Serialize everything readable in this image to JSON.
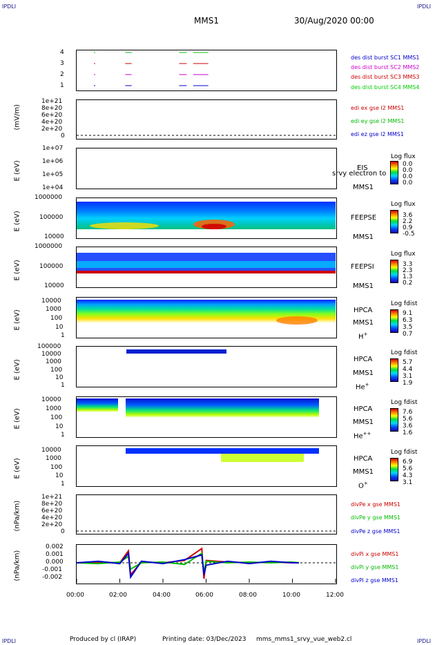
{
  "header": {
    "title": "MMS1",
    "date": "30/Aug/2020 00:00",
    "corner": "IPDLI"
  },
  "footer": {
    "produced": "Produced by cl (IRAP)",
    "printing": "Printing date: 03/Dec/2023",
    "script": "mms_mms1_srvy_vue_web2.cl"
  },
  "x_axis": {
    "ticks": [
      "00:00",
      "02:00",
      "04:00",
      "06:00",
      "08:00",
      "10:00",
      "12:00"
    ]
  },
  "panels": {
    "burst": {
      "yticks": [
        "4",
        "3",
        "2",
        "1"
      ],
      "legend": [
        {
          "text": "des dist burst SC1 MMS1",
          "color": "#0000cc"
        },
        {
          "text": "des dist burst SC2 MMS2",
          "color": "#cc00cc"
        },
        {
          "text": "des dist burst SC3 MMS3",
          "color": "#cc0000"
        },
        {
          "text": "des dist burst SC4 MMS4",
          "color": "#00cc00"
        }
      ]
    },
    "edi": {
      "ylabel": "(mV/m)",
      "yticks": [
        "1e+21",
        "8e+20",
        "6e+20",
        "4e+20",
        "2e+20",
        "0"
      ],
      "legend": [
        {
          "text": "edi ex gse l2 MMS1",
          "color": "#cc0000"
        },
        {
          "text": "edi ey gse l2 MMS1",
          "color": "#00bb00"
        },
        {
          "text": "edi ez gse l2 MMS1",
          "color": "#0000cc"
        }
      ]
    },
    "eis": {
      "ylabel": "E (eV)",
      "yticks": [
        "1e+07",
        "1e+06",
        "1e+05",
        "1e+04"
      ],
      "inst": "EIS",
      "inst2": "MMS1",
      "overlay": "srvy electron to",
      "cb_title": "Log flux",
      "cb_ticks": [
        "0.0",
        "0.0",
        "0.0",
        "0.0"
      ]
    },
    "feepse": {
      "ylabel": "E (eV)",
      "yticks": [
        "1000000",
        "100000",
        "10000"
      ],
      "inst": "FEEPSE",
      "inst2": "MMS1",
      "cb_title": "Log flux",
      "cb_ticks": [
        "3.6",
        "2.2",
        "0.9",
        "-0.5"
      ]
    },
    "feepsi": {
      "ylabel": "E (eV)",
      "yticks": [
        "1000000",
        "100000",
        "10000"
      ],
      "inst": "FEEPSI",
      "inst2": "MMS1",
      "cb_title": "Log flux",
      "cb_ticks": [
        "3.3",
        "2.3",
        "1.3",
        "0.2"
      ]
    },
    "hpca_h": {
      "ylabel": "E (eV)",
      "yticks": [
        "10000",
        "1000",
        "100",
        "10",
        "1"
      ],
      "inst": "HPCA",
      "inst2": "MMS1",
      "species": "H",
      "charge": "+",
      "cb_title": "Log fdist",
      "cb_ticks": [
        "9.1",
        "6.3",
        "3.5",
        "0.7"
      ]
    },
    "hpca_he": {
      "ylabel": "E (eV)",
      "yticks": [
        "100000",
        "10000",
        "1000",
        "100",
        "10",
        "1"
      ],
      "inst": "HPCA",
      "inst2": "MMS1",
      "species": "He",
      "charge": "+",
      "cb_title": "Log fdist",
      "cb_ticks": [
        "5.7",
        "4.4",
        "3.1",
        "1.9"
      ]
    },
    "hpca_hepp": {
      "ylabel": "E (eV)",
      "yticks": [
        "10000",
        "1000",
        "100",
        "10",
        "1"
      ],
      "inst": "HPCA",
      "inst2": "MMS1",
      "species": "He",
      "charge": "++",
      "cb_title": "Log fdist",
      "cb_ticks": [
        "7.6",
        "5.6",
        "3.6",
        "1.6"
      ]
    },
    "hpca_o": {
      "ylabel": "E (eV)",
      "yticks": [
        "10000",
        "1000",
        "100",
        "10",
        "1"
      ],
      "inst": "HPCA",
      "inst2": "MMS1",
      "species": "O",
      "charge": "+",
      "cb_title": "Log fdist",
      "cb_ticks": [
        "6.9",
        "5.6",
        "4.3",
        "3.1"
      ]
    },
    "divpe": {
      "ylabel": "(nPa/km)",
      "yticks": [
        "1e+21",
        "8e+20",
        "6e+20",
        "4e+20",
        "2e+20",
        "0"
      ],
      "legend": [
        {
          "text": "divPe x gse MMS1",
          "color": "#cc0000"
        },
        {
          "text": "divPe y gse MMS1",
          "color": "#00bb00"
        },
        {
          "text": "divPe z gse MMS1",
          "color": "#0000cc"
        }
      ]
    },
    "divpi": {
      "ylabel": "(nPa/km)",
      "yticks": [
        "0.002",
        "0.001",
        "0.000",
        "-0.001",
        "-0.002"
      ],
      "legend": [
        {
          "text": "divPi x gse MMS1",
          "color": "#cc0000"
        },
        {
          "text": "divPi y gse MMS1",
          "color": "#00bb00"
        },
        {
          "text": "divPi z gse MMS1",
          "color": "#0000cc"
        }
      ]
    }
  },
  "chart_data": {
    "type": "line",
    "title": "MMS1",
    "x_range_hours": [
      0,
      12
    ],
    "burst_intervals": [
      {
        "sc": 1,
        "start": 0.8,
        "end": 0.85
      },
      {
        "sc": 1,
        "start": 2.25,
        "end": 2.55
      },
      {
        "sc": 1,
        "start": 4.75,
        "end": 5.1
      },
      {
        "sc": 1,
        "start": 5.4,
        "end": 6.1
      },
      {
        "sc": 2,
        "start": 0.8,
        "end": 0.85
      },
      {
        "sc": 2,
        "start": 2.25,
        "end": 2.55
      },
      {
        "sc": 2,
        "start": 4.75,
        "end": 5.1
      },
      {
        "sc": 2,
        "start": 5.4,
        "end": 6.1
      },
      {
        "sc": 3,
        "start": 0.8,
        "end": 0.85
      },
      {
        "sc": 3,
        "start": 2.25,
        "end": 2.55
      },
      {
        "sc": 3,
        "start": 4.75,
        "end": 5.1
      },
      {
        "sc": 3,
        "start": 5.4,
        "end": 6.1
      },
      {
        "sc": 4,
        "start": 0.8,
        "end": 0.85
      },
      {
        "sc": 4,
        "start": 2.25,
        "end": 2.55
      },
      {
        "sc": 4,
        "start": 4.75,
        "end": 5.1
      },
      {
        "sc": 4,
        "start": 5.4,
        "end": 6.1
      }
    ],
    "divpi_series": [
      {
        "name": "divPi x gse MMS1",
        "x": [
          0,
          1,
          2,
          2.4,
          2.5,
          3,
          4,
          5,
          5.8,
          5.9,
          6,
          7,
          8,
          9,
          10,
          10.3
        ],
        "y": [
          0.0,
          0.0001,
          0.0,
          0.0015,
          -0.0015,
          0.0001,
          0.0,
          0.0003,
          0.0018,
          -0.002,
          0.0003,
          0.0001,
          0.0,
          0.0001,
          0.0,
          0.0
        ]
      },
      {
        "name": "divPi y gse MMS1",
        "x": [
          0,
          1,
          2,
          2.4,
          2.5,
          3,
          4,
          5,
          5.8,
          5.9,
          6,
          7,
          8,
          9,
          10,
          10.3
        ],
        "y": [
          0.0,
          -0.0001,
          0.0001,
          0.0008,
          -0.0008,
          0.0,
          0.0001,
          -0.0002,
          0.0012,
          -0.0012,
          0.0002,
          0.0,
          0.0001,
          0.0,
          0.0001,
          0.0
        ]
      },
      {
        "name": "divPi z gse MMS1",
        "x": [
          0,
          1,
          2,
          2.4,
          2.5,
          3,
          4,
          5,
          5.8,
          5.9,
          6,
          7,
          8,
          9,
          10,
          10.3
        ],
        "y": [
          0.0,
          0.0002,
          -0.0001,
          0.0012,
          -0.0018,
          0.0002,
          -0.0001,
          0.0004,
          0.001,
          -0.0015,
          -0.0003,
          0.0002,
          -0.0001,
          0.0002,
          0.0,
          0.0
        ]
      }
    ]
  }
}
